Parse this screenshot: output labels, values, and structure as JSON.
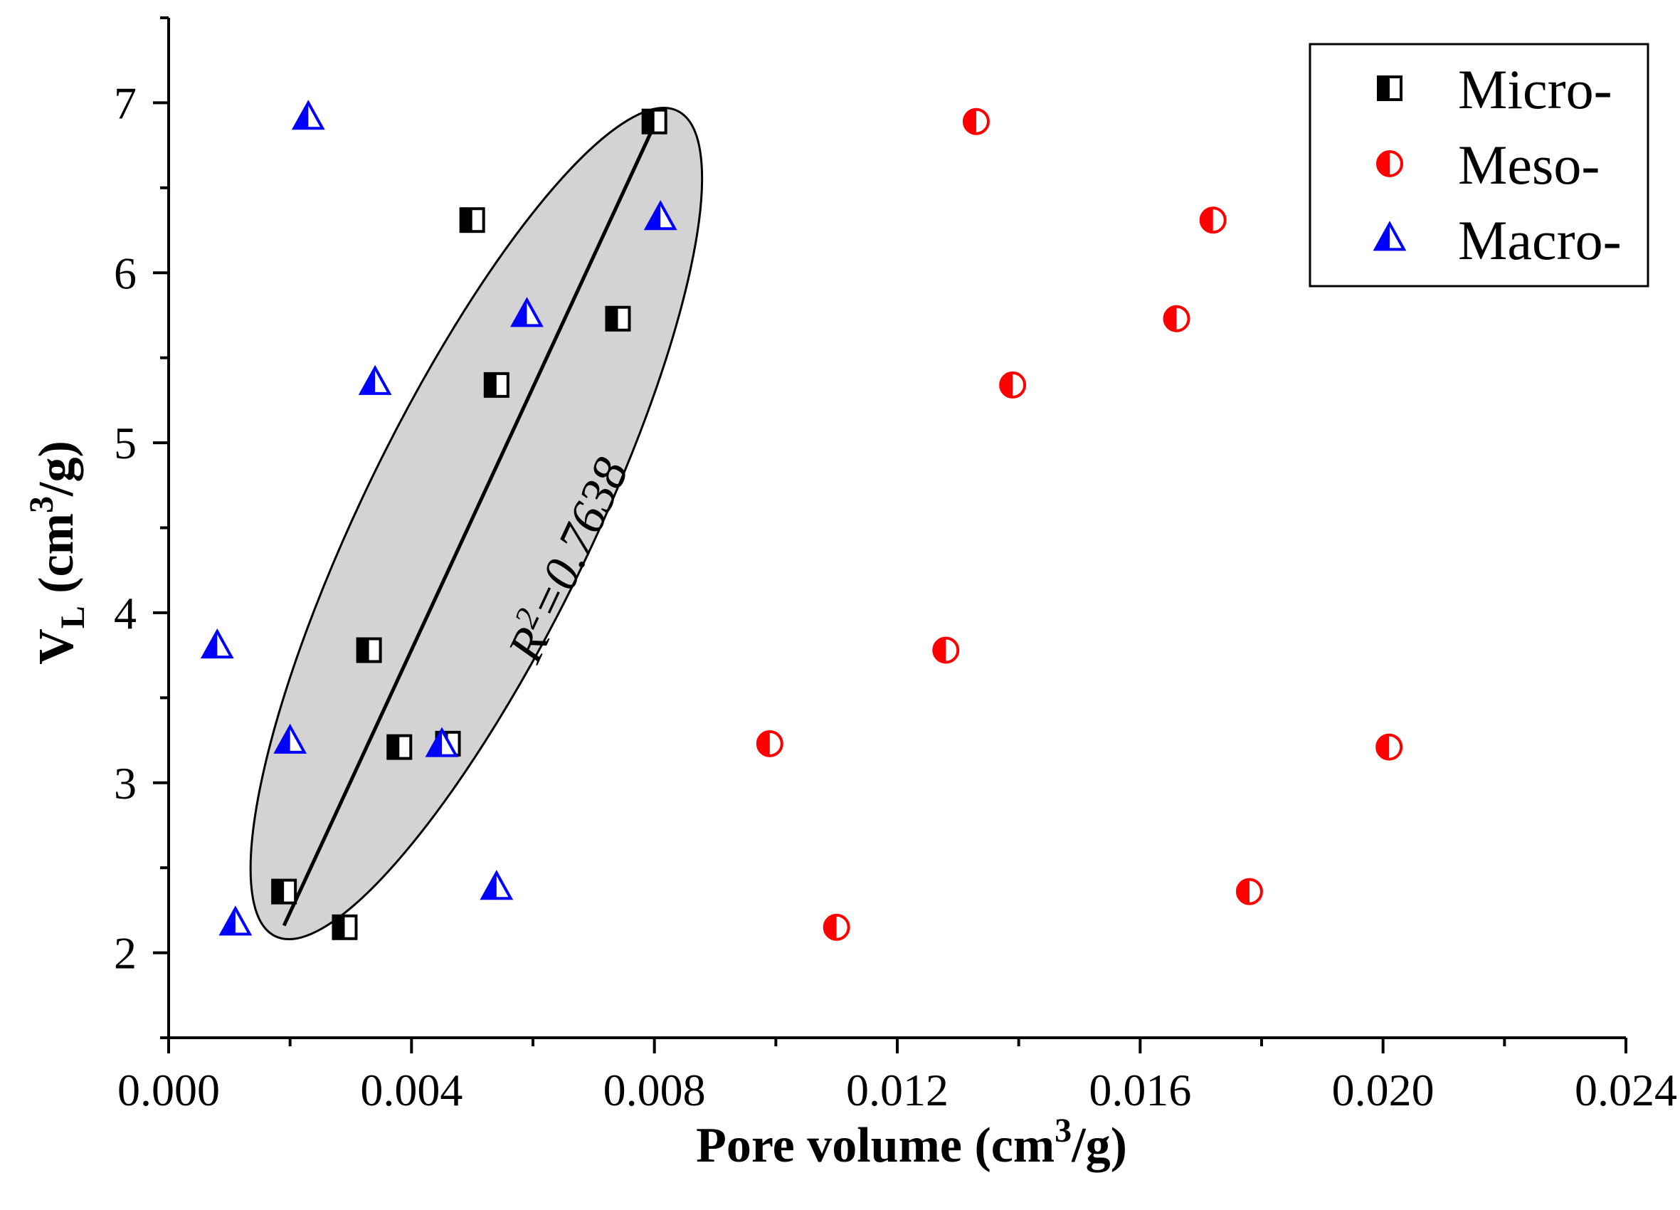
{
  "chart_data": {
    "type": "scatter",
    "xlabel": "Pore volume (cm³/g)",
    "xlabel_parts": [
      "Pore volume (cm",
      "3",
      "/g)"
    ],
    "ylabel": "VL (cm³/g)",
    "ylabel_parts": [
      "V",
      "L",
      " (cm",
      "3",
      "/g)"
    ],
    "xlim": [
      0.0,
      0.024
    ],
    "ylim": [
      1.5,
      7.5
    ],
    "x_ticks": [
      0.0,
      0.004,
      0.008,
      0.012,
      0.016,
      0.02,
      0.024
    ],
    "x_tick_labels": [
      "0.000",
      "0.004",
      "0.008",
      "0.012",
      "0.016",
      "0.020",
      "0.024"
    ],
    "y_ticks": [
      2,
      3,
      4,
      5,
      6,
      7
    ],
    "y_tick_labels": [
      "2",
      "3",
      "4",
      "5",
      "6",
      "7"
    ],
    "grid": false,
    "legend_position": "top-right",
    "colors": {
      "micro": "#000000",
      "meso": "#ff0000",
      "macro": "#0000ff"
    },
    "series": [
      {
        "name": "Micro-",
        "marker": "half-filled-square",
        "points": [
          {
            "x": 0.008,
            "y": 6.89
          },
          {
            "x": 0.005,
            "y": 6.31
          },
          {
            "x": 0.0074,
            "y": 5.73
          },
          {
            "x": 0.0054,
            "y": 5.34
          },
          {
            "x": 0.0033,
            "y": 3.78
          },
          {
            "x": 0.0038,
            "y": 3.21
          },
          {
            "x": 0.0046,
            "y": 3.23
          },
          {
            "x": 0.0019,
            "y": 2.36
          },
          {
            "x": 0.0029,
            "y": 2.15
          }
        ]
      },
      {
        "name": "Meso-",
        "marker": "half-filled-circle",
        "points": [
          {
            "x": 0.0133,
            "y": 6.89
          },
          {
            "x": 0.0172,
            "y": 6.31
          },
          {
            "x": 0.0166,
            "y": 5.73
          },
          {
            "x": 0.0139,
            "y": 5.34
          },
          {
            "x": 0.0128,
            "y": 3.78
          },
          {
            "x": 0.0099,
            "y": 3.23
          },
          {
            "x": 0.0201,
            "y": 3.21
          },
          {
            "x": 0.0178,
            "y": 2.36
          },
          {
            "x": 0.011,
            "y": 2.15
          }
        ]
      },
      {
        "name": "Macro-",
        "marker": "half-filled-triangle",
        "points": [
          {
            "x": 0.0023,
            "y": 6.91
          },
          {
            "x": 0.0081,
            "y": 6.32
          },
          {
            "x": 0.0059,
            "y": 5.75
          },
          {
            "x": 0.0034,
            "y": 5.35
          },
          {
            "x": 0.0008,
            "y": 3.8
          },
          {
            "x": 0.002,
            "y": 3.24
          },
          {
            "x": 0.0045,
            "y": 3.22
          },
          {
            "x": 0.0054,
            "y": 2.38
          },
          {
            "x": 0.0011,
            "y": 2.17
          }
        ]
      }
    ],
    "fit_line": {
      "from": {
        "x": 0.0019,
        "y": 2.16
      },
      "to": {
        "x": 0.008,
        "y": 6.87
      }
    },
    "annotation": {
      "prefix": "R",
      "superscript": "2",
      "value": "=0.7638"
    }
  }
}
